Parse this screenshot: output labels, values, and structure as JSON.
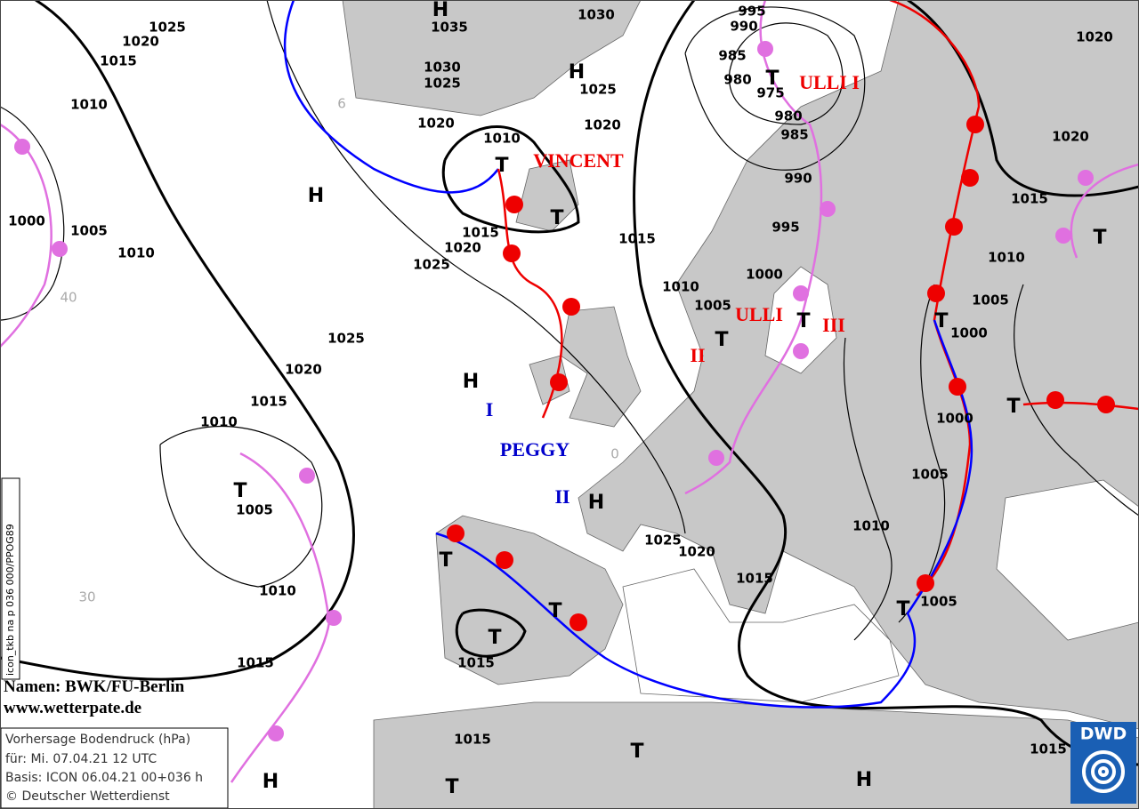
{
  "header": {
    "side_code": "icon_tkb na p 036 000/PPOG89"
  },
  "credits": {
    "names": "Namen: BWK/FU-Berlin",
    "site": "www.wetterpate.de"
  },
  "info_box": {
    "lines": [
      "Vorhersage Bodendruck (hPa)",
      "für:  Mi. 07.04.21  12 UTC",
      "Basis: ICON  06.04.21 00+036 h",
      "© Deutscher Wetterdienst"
    ]
  },
  "logo": {
    "text": "DWD"
  },
  "grid_labels": [
    "6",
    "40",
    "0",
    "30"
  ],
  "isobar_labels": [
    1025,
    1020,
    1015,
    1010,
    1000,
    1005,
    1010,
    1035,
    1030,
    1030,
    1025,
    1025,
    1020,
    1010,
    1020,
    995,
    990,
    985,
    980,
    975,
    980,
    985,
    990,
    995,
    1000,
    1010,
    1005,
    1015,
    1015,
    1020,
    1025,
    1025,
    1020,
    1015,
    1010,
    1005,
    1010,
    1015,
    1025,
    1020,
    1015,
    1010,
    1005,
    1000,
    1000,
    1005,
    1010,
    1015,
    1020,
    1020,
    1005,
    1015,
    1015,
    1015
  ],
  "pressure_centers": [
    "H",
    "H",
    "H",
    "H",
    "H",
    "T",
    "T",
    "T",
    "T",
    "T",
    "T",
    "T",
    "T",
    "T",
    "T",
    "T",
    "T",
    "T",
    "T",
    "T",
    "H",
    "H"
  ],
  "low_names": [
    "VINCENT",
    "ULLI I",
    "ULLI",
    "II",
    "III"
  ],
  "high_names": [
    "I",
    "PEGGY",
    "II"
  ]
}
